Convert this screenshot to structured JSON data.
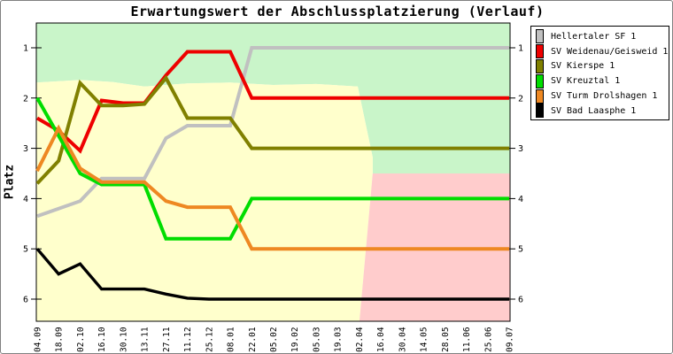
{
  "chart_data": {
    "type": "line",
    "title": "Erwartungswert der Abschlussplatzierung (Verlauf)",
    "ylabel": "Platz",
    "y_axis": {
      "inverted": true,
      "min": 1,
      "max": 6,
      "ticks": [
        1,
        2,
        3,
        4,
        5,
        6
      ],
      "tick_sides": "both"
    },
    "grid": false,
    "legend_position": "top-right",
    "x_labels": [
      "04.09",
      "18.09",
      "02.10",
      "16.10",
      "30.10",
      "13.11",
      "27.11",
      "11.12",
      "25.12",
      "08.01",
      "22.01",
      "05.02",
      "19.02",
      "05.03",
      "19.03",
      "02.04",
      "16.04",
      "30.04",
      "14.05",
      "28.05",
      "11.06",
      "25.06",
      "09.07"
    ],
    "series": [
      {
        "name": "Hellertaler SF 1",
        "color": "#c0c0c0",
        "values": [
          4.35,
          4.2,
          4.05,
          3.6,
          3.6,
          3.6,
          2.8,
          2.55,
          2.55,
          2.55,
          1.0,
          1.0,
          1.0,
          1.0,
          1.0,
          1.0,
          1.0,
          1.0,
          1.0,
          1.0,
          1.0,
          1.0,
          1.0
        ]
      },
      {
        "name": "SV Weidenau/Geisweid 1",
        "color": "#ee0000",
        "values": [
          2.4,
          2.65,
          3.05,
          2.05,
          2.1,
          2.1,
          1.55,
          1.08,
          1.08,
          1.08,
          2.0,
          2.0,
          2.0,
          2.0,
          2.0,
          2.0,
          2.0,
          2.0,
          2.0,
          2.0,
          2.0,
          2.0,
          2.0
        ]
      },
      {
        "name": "SV Kierspe 1",
        "color": "#808000",
        "values": [
          3.7,
          3.25,
          1.7,
          2.15,
          2.15,
          2.12,
          1.6,
          2.4,
          2.4,
          2.4,
          3.0,
          3.0,
          3.0,
          3.0,
          3.0,
          3.0,
          3.0,
          3.0,
          3.0,
          3.0,
          3.0,
          3.0,
          3.0
        ]
      },
      {
        "name": "SV Kreuztal 1",
        "color": "#00dd00",
        "values": [
          2.0,
          2.75,
          3.5,
          3.72,
          3.72,
          3.72,
          4.8,
          4.8,
          4.8,
          4.8,
          4.0,
          4.0,
          4.0,
          4.0,
          4.0,
          4.0,
          4.0,
          4.0,
          4.0,
          4.0,
          4.0,
          4.0,
          4.0
        ]
      },
      {
        "name": "SV Turm Drolshagen 1",
        "color": "#ee8822",
        "values": [
          3.45,
          2.6,
          3.4,
          3.67,
          3.67,
          3.67,
          4.05,
          4.17,
          4.17,
          4.17,
          5.0,
          5.0,
          5.0,
          5.0,
          5.0,
          5.0,
          5.0,
          5.0,
          5.0,
          5.0,
          5.0,
          5.0,
          5.0
        ]
      },
      {
        "name": "SV Bad Laasphe 1",
        "color": "#000000",
        "values": [
          5.0,
          5.5,
          5.3,
          5.8,
          5.8,
          5.8,
          5.9,
          5.98,
          6.0,
          6.0,
          6.0,
          6.0,
          6.0,
          6.0,
          6.0,
          6.0,
          6.0,
          6.0,
          6.0,
          6.0,
          6.0,
          6.0,
          6.0
        ]
      }
    ],
    "regions": [
      {
        "name": "zone-top-green",
        "color": "#c9f5c9",
        "points": [
          [
            -0.05,
            0.51
          ],
          [
            22.05,
            0.51
          ],
          [
            22.05,
            3.5
          ],
          [
            15.64,
            3.5
          ],
          [
            15.64,
            3.18
          ],
          [
            14.94,
            1.77
          ],
          [
            13,
            1.72
          ],
          [
            11,
            1.74
          ],
          [
            9,
            1.69
          ],
          [
            7,
            1.71
          ],
          [
            5,
            1.77
          ],
          [
            3.5,
            1.68
          ],
          [
            2,
            1.64
          ],
          [
            -0.05,
            1.69
          ]
        ]
      },
      {
        "name": "zone-middle-yellow",
        "color": "#ffffcc",
        "points": [
          [
            -0.05,
            1.69
          ],
          [
            2,
            1.64
          ],
          [
            3.5,
            1.68
          ],
          [
            5,
            1.77
          ],
          [
            7,
            1.71
          ],
          [
            9,
            1.69
          ],
          [
            11,
            1.74
          ],
          [
            13,
            1.72
          ],
          [
            14.94,
            1.77
          ],
          [
            15.64,
            3.18
          ],
          [
            15.64,
            3.5
          ],
          [
            15.02,
            6.44
          ],
          [
            -0.05,
            6.44
          ]
        ]
      },
      {
        "name": "zone-bottom-right-pink",
        "color": "#ffcccc",
        "points": [
          [
            15.64,
            3.5
          ],
          [
            22.05,
            3.5
          ],
          [
            22.05,
            6.44
          ],
          [
            15.02,
            6.44
          ]
        ]
      }
    ]
  }
}
